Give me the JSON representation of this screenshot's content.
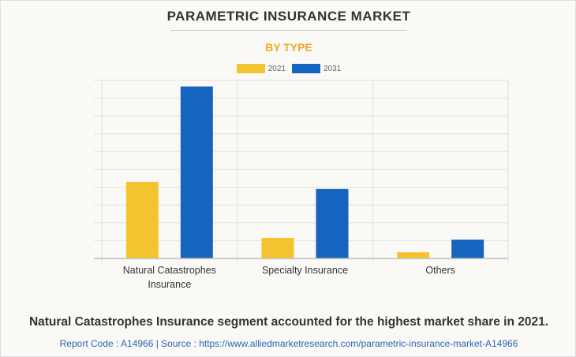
{
  "chart_data": {
    "type": "bar",
    "title": "PARAMETRIC INSURANCE MARKET",
    "subtitle": "BY TYPE",
    "categories": [
      "Natural Catastrophes Insurance",
      "Specialty Insurance",
      "Others"
    ],
    "category_lines": [
      [
        "Natural Catastrophes",
        "Insurance"
      ],
      [
        "Specialty Insurance"
      ],
      [
        "Others"
      ]
    ],
    "series": [
      {
        "name": "2021",
        "color": "#f4c430",
        "values": [
          4.3,
          1.15,
          0.35
        ]
      },
      {
        "name": "2031",
        "color": "#1565c0",
        "values": [
          9.66,
          3.9,
          1.06
        ]
      }
    ],
    "ylim": [
      0,
      10
    ],
    "grid": true,
    "y_tick_labels_shown": false,
    "legend_position": "top-center",
    "xlabel": "",
    "ylabel": ""
  },
  "caption": "Natural Catastrophes Insurance segment accounted for the highest market share in 2021.",
  "source": "Report Code : A14966  |  Source : https://www.alliedmarketresearch.com/parametric-insurance-market-A14966"
}
